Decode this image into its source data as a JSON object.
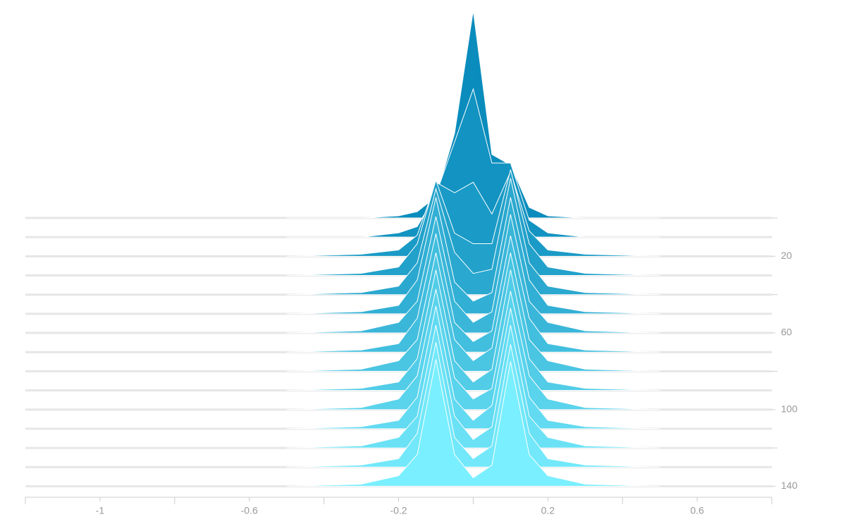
{
  "chart_data": {
    "type": "ridgeline",
    "bins": [
      -0.5,
      -0.3,
      -0.2,
      -0.15,
      -0.1,
      -0.05,
      0,
      0.05,
      0.1,
      0.15,
      0.2,
      0.3,
      0.5
    ],
    "steps": [
      0,
      10,
      20,
      30,
      40,
      50,
      60,
      70,
      80,
      90,
      100,
      110,
      120,
      130,
      140
    ],
    "series": [
      {
        "values": [
          0,
          0,
          0.01,
          0.03,
          0.1,
          0.4,
          0.98,
          0.3,
          0.25,
          0.05,
          0.01,
          0,
          0
        ]
      },
      {
        "values": [
          0,
          0,
          0.02,
          0.05,
          0.2,
          0.45,
          0.7,
          0.35,
          0.35,
          0.08,
          0.02,
          0,
          0
        ]
      },
      {
        "values": [
          0,
          0.01,
          0.03,
          0.1,
          0.35,
          0.3,
          0.35,
          0.2,
          0.4,
          0.12,
          0.03,
          0.01,
          0
        ]
      },
      {
        "values": [
          0,
          0.01,
          0.04,
          0.15,
          0.45,
          0.2,
          0.15,
          0.15,
          0.5,
          0.15,
          0.04,
          0.01,
          0
        ]
      },
      {
        "values": [
          0,
          0.01,
          0.04,
          0.15,
          0.5,
          0.2,
          0.1,
          0.12,
          0.55,
          0.15,
          0.04,
          0.01,
          0
        ]
      },
      {
        "values": [
          0,
          0.01,
          0.04,
          0.16,
          0.55,
          0.15,
          0.06,
          0.1,
          0.55,
          0.16,
          0.04,
          0.01,
          0
        ]
      },
      {
        "values": [
          0,
          0.01,
          0.05,
          0.15,
          0.55,
          0.15,
          0.05,
          0.1,
          0.56,
          0.15,
          0.05,
          0.01,
          0
        ]
      },
      {
        "values": [
          0,
          0.01,
          0.04,
          0.16,
          0.56,
          0.14,
          0.05,
          0.1,
          0.55,
          0.16,
          0.04,
          0.01,
          0
        ]
      },
      {
        "values": [
          0,
          0.01,
          0.05,
          0.15,
          0.56,
          0.15,
          0.05,
          0.11,
          0.56,
          0.15,
          0.05,
          0.01,
          0
        ]
      },
      {
        "values": [
          0,
          0.01,
          0.04,
          0.15,
          0.57,
          0.14,
          0.04,
          0.1,
          0.57,
          0.15,
          0.04,
          0.01,
          0
        ]
      },
      {
        "values": [
          0,
          0.01,
          0.05,
          0.16,
          0.57,
          0.15,
          0.05,
          0.1,
          0.56,
          0.16,
          0.05,
          0.01,
          0
        ]
      },
      {
        "values": [
          0,
          0.01,
          0.04,
          0.15,
          0.58,
          0.14,
          0.04,
          0.11,
          0.57,
          0.15,
          0.04,
          0.01,
          0
        ]
      },
      {
        "values": [
          0,
          0.01,
          0.05,
          0.15,
          0.58,
          0.15,
          0.04,
          0.1,
          0.58,
          0.15,
          0.05,
          0.01,
          0
        ]
      },
      {
        "values": [
          0,
          0.01,
          0.04,
          0.16,
          0.59,
          0.14,
          0.04,
          0.1,
          0.58,
          0.16,
          0.04,
          0.01,
          0
        ]
      },
      {
        "values": [
          0,
          0.01,
          0.05,
          0.15,
          0.6,
          0.15,
          0.04,
          0.1,
          0.59,
          0.15,
          0.05,
          0.01,
          0
        ]
      }
    ],
    "color_start": "#0a8cbc",
    "color_end": "#7aefff",
    "xlim": [
      -1.2,
      0.8
    ],
    "xticks": [
      -1.0,
      -0.6,
      -0.2,
      0.2,
      0.6
    ],
    "xminorticks": [
      -1.2,
      -0.8,
      -0.4,
      0,
      0.4,
      0.8
    ],
    "ylim": [
      0,
      145
    ],
    "yticks": [
      20,
      60,
      100,
      140
    ],
    "yminorticks": [
      0,
      40,
      80,
      120
    ],
    "zlim": [
      0,
      1
    ]
  }
}
